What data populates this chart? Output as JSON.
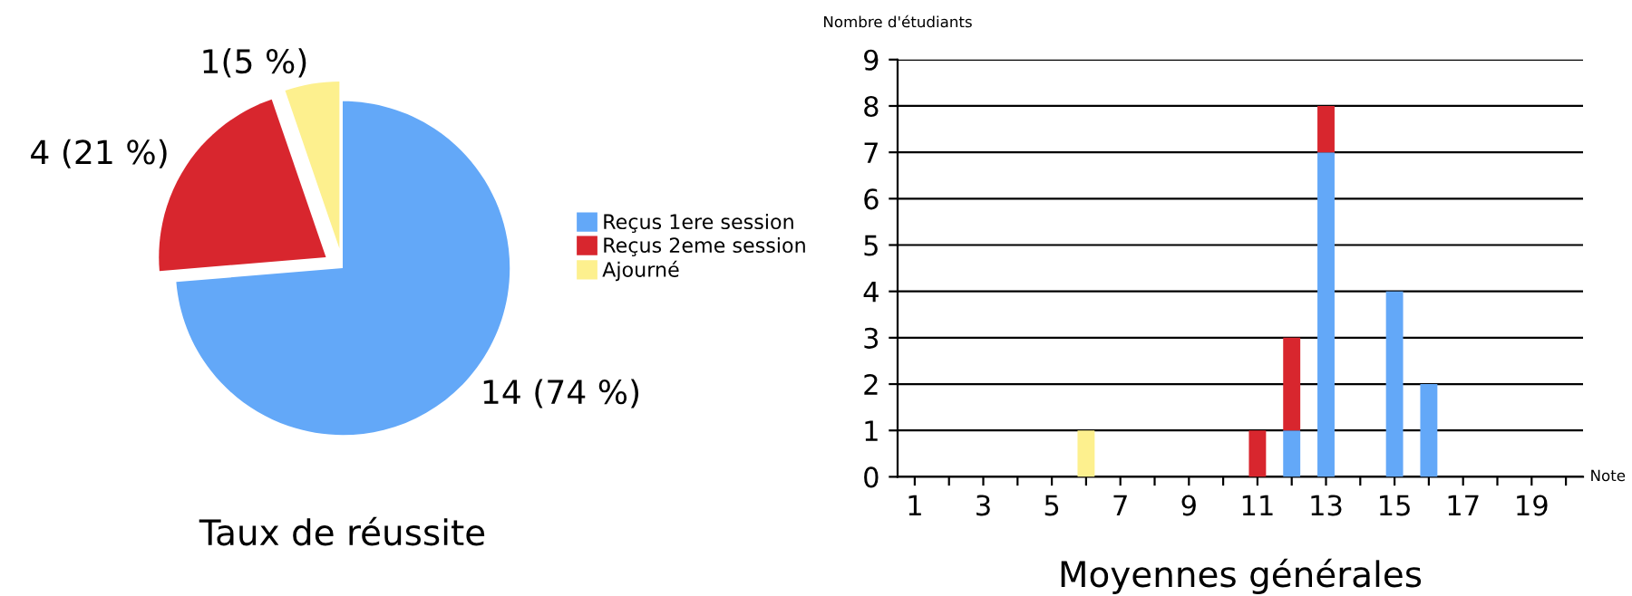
{
  "chart_data": [
    {
      "type": "pie",
      "title": "Taux de réussite",
      "categories": [
        "Reçus 1ere session",
        "Reçus 2eme session",
        "Ajourné"
      ],
      "values": [
        14,
        4,
        1
      ],
      "colors": [
        "#63a8f8",
        "#d8262e",
        "#fdf08e"
      ],
      "value_labels": [
        "14 (74 %)",
        "4 (21 %)",
        "1(5 %)"
      ],
      "legend": "right"
    },
    {
      "type": "bar",
      "title": "Moyennes générales",
      "xlabel": "Note",
      "ylabel": "Nombre d'étudiants",
      "categories": [
        "1",
        null,
        "3",
        null,
        "5",
        null,
        "7",
        null,
        "9",
        null,
        "11",
        null,
        "13",
        null,
        "15",
        null,
        "17",
        null,
        "19",
        null
      ],
      "stacked": true,
      "series": [
        {
          "color": "#63a8f8",
          "values": [
            0,
            0,
            0,
            0,
            0,
            0,
            0,
            0,
            0,
            0,
            0,
            1,
            7,
            0,
            4,
            2,
            0,
            0,
            0,
            0
          ]
        },
        {
          "color": "#d8262e",
          "values": [
            0,
            0,
            0,
            0,
            0,
            0,
            0,
            0,
            0,
            0,
            1,
            2,
            1,
            0,
            0,
            0,
            0,
            0,
            0,
            0
          ]
        },
        {
          "color": "#fdf08e",
          "values": [
            0,
            0,
            0,
            0,
            0,
            1,
            0,
            0,
            0,
            0,
            0,
            0,
            0,
            0,
            0,
            0,
            0,
            0,
            0,
            0
          ]
        }
      ],
      "ylim": [
        0,
        9
      ],
      "yticks": [
        0,
        1,
        2,
        3,
        4,
        5,
        6,
        7,
        8,
        9
      ],
      "grid": "y",
      "legend": false
    }
  ]
}
